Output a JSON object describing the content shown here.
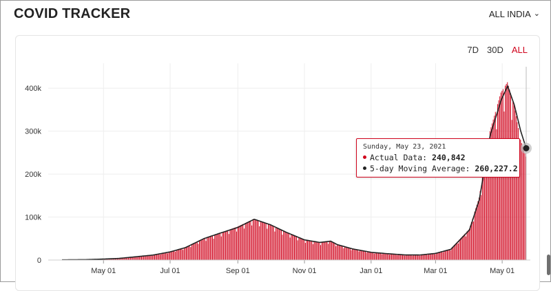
{
  "header": {
    "title": "COVID TRACKER",
    "region_label": "ALL INDIA",
    "region_chevron_icon": "chevron-down-icon"
  },
  "range_buttons": [
    {
      "label": "7D",
      "active": false
    },
    {
      "label": "30D",
      "active": false
    },
    {
      "label": "ALL",
      "active": true
    }
  ],
  "colors": {
    "accent": "#d0021b",
    "bar": "#d0021b",
    "average_line": "#222222",
    "grid": "#eeeeee"
  },
  "tooltip": {
    "date": "Sunday, May 23, 2021",
    "actual_label": "Actual Data:",
    "actual_value": "240,842",
    "avg_label": "5-day Moving Average:",
    "avg_value": "260,227.2"
  },
  "chart_data": {
    "type": "bar",
    "title": "",
    "xlabel": "",
    "ylabel": "",
    "x_start": "2020-03-24",
    "x_end": "2021-05-23",
    "ylim": [
      0,
      450000
    ],
    "y_ticks": [
      {
        "value": 0,
        "label": "0"
      },
      {
        "value": 100000,
        "label": "100k"
      },
      {
        "value": 200000,
        "label": "200k"
      },
      {
        "value": 300000,
        "label": "300k"
      },
      {
        "value": 400000,
        "label": "400k"
      }
    ],
    "x_ticks": [
      {
        "date": "2020-05-01",
        "label": "May 01"
      },
      {
        "date": "2020-07-01",
        "label": "Jul 01"
      },
      {
        "date": "2020-09-01",
        "label": "Sep 01"
      },
      {
        "date": "2020-11-01",
        "label": "Nov 01"
      },
      {
        "date": "2021-01-01",
        "label": "Jan 01"
      },
      {
        "date": "2021-03-01",
        "label": "Mar 01"
      },
      {
        "date": "2021-05-01",
        "label": "May 01"
      }
    ],
    "grid": true,
    "series": [
      {
        "name": "Actual Data",
        "kind": "bar",
        "anchors": [
          [
            "2020-03-24",
            500
          ],
          [
            "2020-04-15",
            1000
          ],
          [
            "2020-05-01",
            2300
          ],
          [
            "2020-05-15",
            3800
          ],
          [
            "2020-06-01",
            8000
          ],
          [
            "2020-06-15",
            11500
          ],
          [
            "2020-07-01",
            19000
          ],
          [
            "2020-07-15",
            29000
          ],
          [
            "2020-08-01",
            50000
          ],
          [
            "2020-08-15",
            62000
          ],
          [
            "2020-09-01",
            78000
          ],
          [
            "2020-09-16",
            96000
          ],
          [
            "2020-10-01",
            82000
          ],
          [
            "2020-10-15",
            65000
          ],
          [
            "2020-11-01",
            47000
          ],
          [
            "2020-11-15",
            40000
          ],
          [
            "2020-11-25",
            45000
          ],
          [
            "2020-12-01",
            36000
          ],
          [
            "2020-12-15",
            26000
          ],
          [
            "2021-01-01",
            18000
          ],
          [
            "2021-01-15",
            15000
          ],
          [
            "2021-02-01",
            12000
          ],
          [
            "2021-02-15",
            11500
          ],
          [
            "2021-03-01",
            16000
          ],
          [
            "2021-03-15",
            26000
          ],
          [
            "2021-04-01",
            72000
          ],
          [
            "2021-04-10",
            145000
          ],
          [
            "2021-04-20",
            300000
          ],
          [
            "2021-04-30",
            390000
          ],
          [
            "2021-05-06",
            414000
          ],
          [
            "2021-05-12",
            362000
          ],
          [
            "2021-05-18",
            280000
          ],
          [
            "2021-05-23",
            240842
          ]
        ]
      },
      {
        "name": "5-day Moving Average",
        "kind": "line",
        "points": [
          [
            "2020-03-24",
            500
          ],
          [
            "2020-04-15",
            1000
          ],
          [
            "2020-05-01",
            2300
          ],
          [
            "2020-05-15",
            3800
          ],
          [
            "2020-06-01",
            8000
          ],
          [
            "2020-06-15",
            11500
          ],
          [
            "2020-07-01",
            19000
          ],
          [
            "2020-07-15",
            29000
          ],
          [
            "2020-08-01",
            50000
          ],
          [
            "2020-08-15",
            62000
          ],
          [
            "2020-09-01",
            76000
          ],
          [
            "2020-09-16",
            95000
          ],
          [
            "2020-10-01",
            82000
          ],
          [
            "2020-10-15",
            65000
          ],
          [
            "2020-11-01",
            47000
          ],
          [
            "2020-11-15",
            41000
          ],
          [
            "2020-11-25",
            44000
          ],
          [
            "2020-12-01",
            36000
          ],
          [
            "2020-12-15",
            26000
          ],
          [
            "2021-01-01",
            18000
          ],
          [
            "2021-01-15",
            15000
          ],
          [
            "2021-02-01",
            12000
          ],
          [
            "2021-02-15",
            11800
          ],
          [
            "2021-03-01",
            15500
          ],
          [
            "2021-03-15",
            25000
          ],
          [
            "2021-04-01",
            70000
          ],
          [
            "2021-04-10",
            140000
          ],
          [
            "2021-04-20",
            290000
          ],
          [
            "2021-04-30",
            372000
          ],
          [
            "2021-05-06",
            405000
          ],
          [
            "2021-05-12",
            362000
          ],
          [
            "2021-05-18",
            300000
          ],
          [
            "2021-05-23",
            260227.2
          ]
        ]
      }
    ],
    "highlight": {
      "date": "2021-05-23",
      "actual": 240842,
      "average": 260227.2
    }
  }
}
